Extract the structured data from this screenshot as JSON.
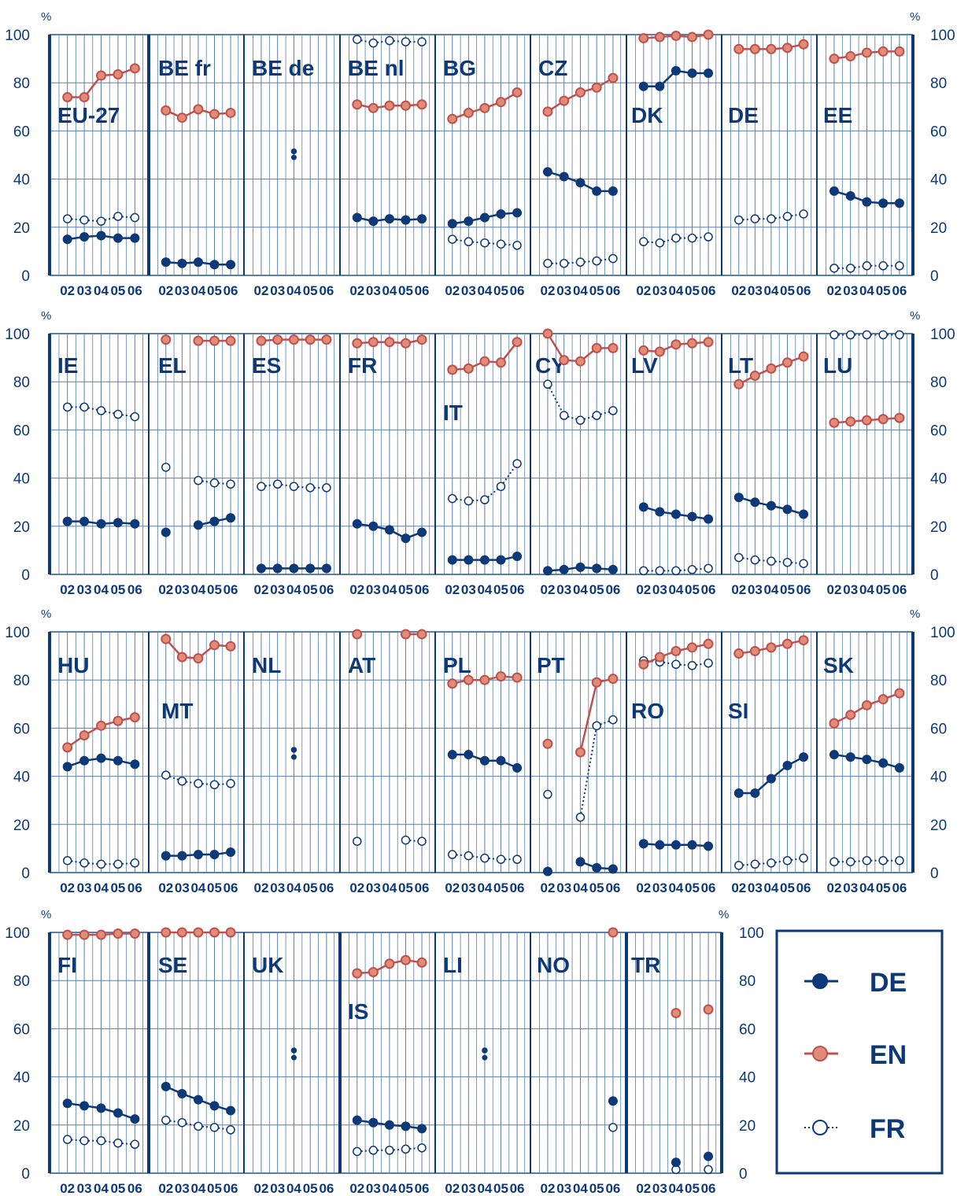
{
  "unit_label": "%",
  "x_tick_labels": [
    "02",
    "03",
    "04",
    "05",
    "06"
  ],
  "y_tick_labels": [
    "0",
    "20",
    "40",
    "60",
    "80",
    "100"
  ],
  "legend": {
    "items": [
      {
        "label": "DE",
        "color": "#0d3978",
        "marker": "filled-dot"
      },
      {
        "label": "EN",
        "color": "#c0504d",
        "marker": "filled-dot-red"
      },
      {
        "label": "FR",
        "color": "#0d3978",
        "marker": "open-circle-dotted"
      }
    ]
  },
  "colors": {
    "axis": "#0d3978",
    "grid": "#5a7fa8",
    "de": "#0d3978",
    "en": "#c0504d",
    "en_fill": "#e08c76",
    "fr": "#0d3978"
  },
  "chart_data": {
    "type": "line",
    "title": "",
    "xlabel": "",
    "ylabel": "%",
    "ylim": [
      0,
      100
    ],
    "x": [
      "02",
      "03",
      "04",
      "05",
      "06"
    ],
    "grid": true,
    "legend_position": "bottom-right",
    "panels": [
      {
        "label": "EU-27",
        "DE": [
          15,
          16,
          16.5,
          15.5,
          15.5
        ],
        "EN": [
          74,
          74,
          83,
          83.5,
          86
        ],
        "FR": [
          23.5,
          23,
          22.5,
          24.5,
          24
        ]
      },
      {
        "label": "BE fr",
        "DE": [
          5.5,
          5,
          5.5,
          4.5,
          4.5
        ],
        "EN": [
          68.5,
          65.5,
          69,
          67,
          67.5
        ],
        "FR": [
          null,
          null,
          null,
          null,
          null
        ]
      },
      {
        "label": "BE de",
        "DE": [
          null,
          null,
          49,
          null,
          null
        ],
        "EN": [
          null,
          null,
          null,
          null,
          null
        ],
        "FR": [
          null,
          null,
          51.5,
          null,
          null
        ]
      },
      {
        "label": "BE nl",
        "DE": [
          24,
          22.5,
          23.5,
          23,
          23.5
        ],
        "EN": [
          71,
          69.5,
          70.5,
          70.5,
          71
        ],
        "FR": [
          98,
          96.5,
          97.5,
          97,
          97
        ]
      },
      {
        "label": "BG",
        "DE": [
          21.5,
          22.5,
          24,
          25.5,
          26
        ],
        "EN": [
          65,
          67.5,
          69.5,
          72,
          76
        ],
        "FR": [
          15,
          14,
          13.5,
          13,
          12.5
        ]
      },
      {
        "label": "CZ",
        "DE": [
          43,
          41,
          38.5,
          35,
          35
        ],
        "EN": [
          68,
          72.5,
          76,
          78,
          82
        ],
        "FR": [
          5,
          5,
          5.5,
          6,
          7
        ]
      },
      {
        "label": "DK",
        "DE": [
          78.5,
          78.5,
          85,
          84,
          84
        ],
        "EN": [
          98.5,
          99,
          99.5,
          99,
          100
        ],
        "FR": [
          14,
          13.5,
          15.5,
          15.5,
          16
        ]
      },
      {
        "label": "DE",
        "DE": [
          null,
          null,
          null,
          null,
          null
        ],
        "EN": [
          94,
          94,
          94,
          94.5,
          96
        ],
        "FR": [
          23,
          23.5,
          23.5,
          24.5,
          25.5
        ]
      },
      {
        "label": "EE",
        "DE": [
          35,
          33,
          30.5,
          30,
          30
        ],
        "EN": [
          90,
          91,
          92.5,
          93,
          93
        ],
        "FR": [
          3,
          3,
          4,
          4,
          4
        ]
      },
      {
        "label": "IE",
        "DE": [
          22,
          22,
          21,
          21.5,
          21
        ],
        "EN": [
          null,
          null,
          null,
          null,
          null
        ],
        "FR": [
          69.5,
          69.5,
          68,
          66.5,
          65.5
        ]
      },
      {
        "label": "EL",
        "DE": [
          17.5,
          null,
          20.5,
          22,
          23.5
        ],
        "EN": [
          97.5,
          null,
          97,
          97,
          97
        ],
        "FR": [
          44.5,
          null,
          39,
          38,
          37.5
        ]
      },
      {
        "label": "ES",
        "DE": [
          2.5,
          2.5,
          2.5,
          2.5,
          2.5
        ],
        "EN": [
          97,
          97.5,
          97.5,
          97.5,
          97.5
        ],
        "FR": [
          36.5,
          37.5,
          36.5,
          36,
          36
        ]
      },
      {
        "label": "FR",
        "DE": [
          21,
          20,
          18.5,
          15,
          17.5
        ],
        "EN": [
          96,
          96.5,
          96.5,
          96,
          97.5
        ],
        "FR": [
          null,
          null,
          null,
          null,
          null
        ]
      },
      {
        "label": "IT",
        "DE": [
          6,
          6,
          6,
          6,
          7.5
        ],
        "EN": [
          85,
          85.5,
          88.5,
          88,
          96.5
        ],
        "FR": [
          31.5,
          30.5,
          31,
          36.5,
          46
        ]
      },
      {
        "label": "CY",
        "DE": [
          1.5,
          2,
          3,
          2.5,
          2
        ],
        "EN": [
          100,
          89,
          88.5,
          94,
          94
        ],
        "FR": [
          79,
          66,
          64,
          66,
          68
        ]
      },
      {
        "label": "LV",
        "DE": [
          28,
          26,
          25,
          24,
          23
        ],
        "EN": [
          93,
          92.5,
          95.5,
          96,
          96.5
        ],
        "FR": [
          1.5,
          1.5,
          1.5,
          2,
          2.5
        ]
      },
      {
        "label": "LT",
        "DE": [
          32,
          30,
          28.5,
          27,
          25
        ],
        "EN": [
          79,
          82.5,
          85.5,
          88,
          90.5
        ],
        "FR": [
          7,
          6,
          5.5,
          5,
          4.5
        ]
      },
      {
        "label": "LU",
        "DE": [
          null,
          null,
          null,
          null,
          null
        ],
        "EN": [
          63,
          63.5,
          64,
          64.5,
          65
        ],
        "FR": [
          99.5,
          99.5,
          99.5,
          99.5,
          99.5
        ]
      },
      {
        "label": "HU",
        "DE": [
          44,
          46.5,
          47.5,
          46.5,
          45
        ],
        "EN": [
          52,
          57,
          61,
          63,
          64.5
        ],
        "FR": [
          5,
          4,
          3.5,
          3.5,
          4
        ]
      },
      {
        "label": "MT",
        "DE": [
          7,
          7,
          7.5,
          7.5,
          8.5
        ],
        "EN": [
          97,
          89.5,
          89,
          94.5,
          94
        ],
        "FR": [
          40.5,
          38,
          37,
          36.5,
          37
        ]
      },
      {
        "label": "NL",
        "DE": [
          null,
          null,
          48,
          null,
          null
        ],
        "EN": [
          null,
          null,
          null,
          null,
          null
        ],
        "FR": [
          null,
          null,
          51,
          null,
          null
        ]
      },
      {
        "label": "AT",
        "DE": [
          null,
          null,
          null,
          null,
          null
        ],
        "EN": [
          99,
          null,
          null,
          99,
          99
        ],
        "FR": [
          13,
          null,
          null,
          13.5,
          13
        ]
      },
      {
        "label": "PL",
        "DE": [
          49,
          49,
          46.5,
          46.5,
          43.5
        ],
        "EN": [
          78.5,
          80,
          80,
          81.5,
          81
        ],
        "FR": [
          7.5,
          7,
          6,
          5.5,
          5.5
        ]
      },
      {
        "label": "PT",
        "DE": [
          0.5,
          null,
          4.5,
          2,
          1.5
        ],
        "EN": [
          53.5,
          null,
          50,
          79,
          80.5
        ],
        "FR": [
          32.5,
          null,
          23,
          61,
          63.5
        ]
      },
      {
        "label": "RO",
        "DE": [
          12,
          11.5,
          11.5,
          11.5,
          11
        ],
        "EN": [
          86.5,
          89.5,
          92,
          93.5,
          95
        ],
        "FR": [
          88,
          87.5,
          86.5,
          86,
          87
        ]
      },
      {
        "label": "SI",
        "DE": [
          33,
          33,
          39,
          44.5,
          48
        ],
        "EN": [
          91,
          92,
          93.5,
          95,
          96.5
        ],
        "FR": [
          3,
          3.5,
          4,
          5,
          6
        ]
      },
      {
        "label": "SK",
        "DE": [
          49,
          48,
          47,
          45.5,
          43.5
        ],
        "EN": [
          62,
          65.5,
          69.5,
          72,
          74.5
        ],
        "FR": [
          4.5,
          4.5,
          5,
          5,
          5
        ]
      },
      {
        "label": "FI",
        "DE": [
          29,
          28,
          27,
          25,
          22.5
        ],
        "EN": [
          99,
          99,
          99,
          99.5,
          99.5
        ],
        "FR": [
          14,
          13.5,
          13.5,
          12.5,
          12
        ]
      },
      {
        "label": "SE",
        "DE": [
          36,
          33,
          30.5,
          28,
          26
        ],
        "EN": [
          100,
          100,
          100,
          100,
          100
        ],
        "FR": [
          22,
          21,
          19.5,
          19,
          18
        ]
      },
      {
        "label": "UK",
        "DE": [
          null,
          null,
          48,
          null,
          null
        ],
        "EN": [
          null,
          null,
          null,
          null,
          null
        ],
        "FR": [
          null,
          null,
          51,
          null,
          null
        ]
      },
      {
        "label": "IS",
        "DE": [
          22,
          21,
          20,
          19.5,
          18.5
        ],
        "EN": [
          83,
          83.5,
          87,
          88.5,
          87.5
        ],
        "FR": [
          9,
          9.5,
          9.5,
          10,
          10.5
        ]
      },
      {
        "label": "LI",
        "DE": [
          null,
          null,
          48,
          null,
          null
        ],
        "EN": [
          null,
          null,
          null,
          null,
          null
        ],
        "FR": [
          null,
          null,
          51,
          null,
          null
        ]
      },
      {
        "label": "NO",
        "DE": [
          null,
          null,
          null,
          null,
          30
        ],
        "EN": [
          null,
          null,
          null,
          null,
          100
        ],
        "FR": [
          null,
          null,
          null,
          null,
          19
        ]
      },
      {
        "label": "TR",
        "DE": [
          null,
          null,
          4.5,
          null,
          7
        ],
        "EN": [
          null,
          null,
          66.5,
          null,
          68
        ],
        "FR": [
          null,
          null,
          1.5,
          null,
          1.5
        ]
      }
    ]
  }
}
